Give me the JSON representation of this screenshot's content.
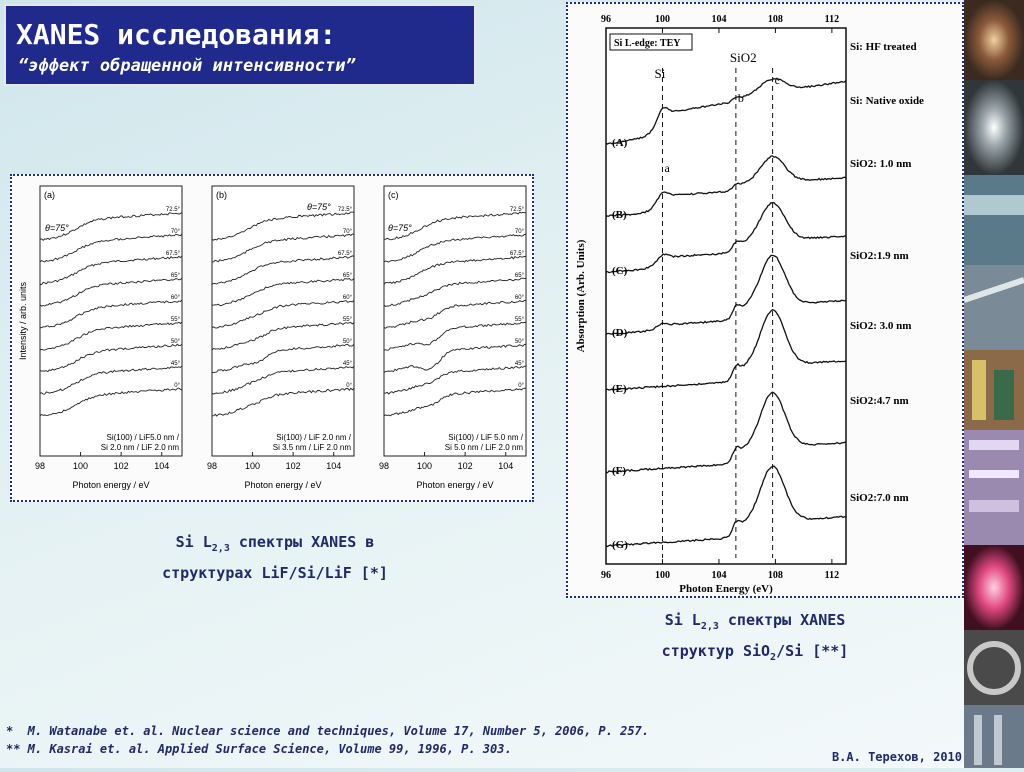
{
  "title": {
    "main": "XANES исследования:",
    "sub": "“эффект обращенной интенсивности”"
  },
  "left_caption": {
    "line1": "Si L",
    "line1_sub": "2,3",
    "line1_rest": " спектры XANES в",
    "line2": "структурах LiF/Si/LiF [*]"
  },
  "right_caption": {
    "line1": "Si L",
    "line1_sub": "2,3",
    "line1_rest": " спектры XANES",
    "line2_a": "структур SiO",
    "line2_sub": "2",
    "line2_b": "/Si [**]"
  },
  "references": [
    "*  M. Watanabe et. al. Nuclear science and techniques, Volume 17, Number 5, 2006, P. 257.",
    "** M. Kasrai et. al. Applied Surface Science, Volume 99, 1996, P. 303."
  ],
  "author": "В.А. Терехов, 2010",
  "chart_data": [
    {
      "type": "line",
      "panel": "(a)",
      "theta_label": "θ=75°",
      "ylabel": "Intensity / arb. units",
      "xlabel": "Photon energy / eV",
      "x_ticks": [
        "98",
        "100",
        "102",
        "104"
      ],
      "xlim": [
        98,
        105
      ],
      "series": [
        {
          "name": "72.5°"
        },
        {
          "name": "70°"
        },
        {
          "name": "67.5°"
        },
        {
          "name": "65°"
        },
        {
          "name": "60°"
        },
        {
          "name": "55°"
        },
        {
          "name": "50°"
        },
        {
          "name": "45°"
        },
        {
          "name": "0°"
        }
      ],
      "sample_label": [
        "Si(100) / LiF5.0 nm /",
        "Si 2.0 nm / LiF 2.0 nm"
      ]
    },
    {
      "type": "line",
      "panel": "(b)",
      "theta_label": "θ=75°",
      "xlabel": "Photon energy / eV",
      "x_ticks": [
        "98",
        "100",
        "102",
        "104"
      ],
      "xlim": [
        98,
        105
      ],
      "series": [
        {
          "name": "72.5°"
        },
        {
          "name": "70°"
        },
        {
          "name": "67.5°"
        },
        {
          "name": "65°"
        },
        {
          "name": "60°"
        },
        {
          "name": "55°"
        },
        {
          "name": "50°"
        },
        {
          "name": "45°"
        },
        {
          "name": "0°"
        }
      ],
      "sample_label": [
        "Si(100) / LiF 2.0 nm /",
        "Si 3.5 nm / LiF 2.0 nm"
      ]
    },
    {
      "type": "line",
      "panel": "(c)",
      "theta_label": "θ=75°",
      "xlabel": "Photon energy / eV",
      "x_ticks": [
        "98",
        "100",
        "102",
        "104"
      ],
      "xlim": [
        98,
        105
      ],
      "series": [
        {
          "name": "72.5°"
        },
        {
          "name": "70°"
        },
        {
          "name": "67.5°"
        },
        {
          "name": "65°"
        },
        {
          "name": "60°"
        },
        {
          "name": "55°"
        },
        {
          "name": "50°"
        },
        {
          "name": "45°"
        },
        {
          "name": "0°"
        }
      ],
      "sample_label": [
        "Si(100) / LiF 5.0 nm /",
        "Si 5.0 nm / LiF 2.0 nm"
      ]
    },
    {
      "type": "line",
      "legend_box": "Si L-edge: TEY",
      "ylabel": "Absorption (Arb. Units)",
      "xlabel": "Photon Energy (eV)",
      "x_ticks": [
        "96",
        "100",
        "104",
        "108",
        "112"
      ],
      "xlim": [
        96,
        113
      ],
      "dashed_lines_at": [
        100.0,
        105.2,
        107.8
      ],
      "peak_labels": [
        "Si",
        "SiO2",
        "a",
        "b",
        "c"
      ],
      "series": [
        {
          "name": "(A)",
          "desc": "Si: HF treated"
        },
        {
          "name": "(B)",
          "desc": "Si: Native oxide"
        },
        {
          "name": "(C)",
          "desc": "SiO2: 1.0 nm"
        },
        {
          "name": "(D)",
          "desc": "SiO2:1.9 nm"
        },
        {
          "name": "(E)",
          "desc": "SiO2: 3.0 nm"
        },
        {
          "name": "(F)",
          "desc": "SiO2:4.7 nm"
        },
        {
          "name": "(G)",
          "desc": "SiO2:7.0 nm"
        }
      ]
    }
  ],
  "colors": {
    "title_bg": "#1f2a8c",
    "caption_text": "#1f2a6b",
    "panel_border": "#1c2f8a"
  }
}
